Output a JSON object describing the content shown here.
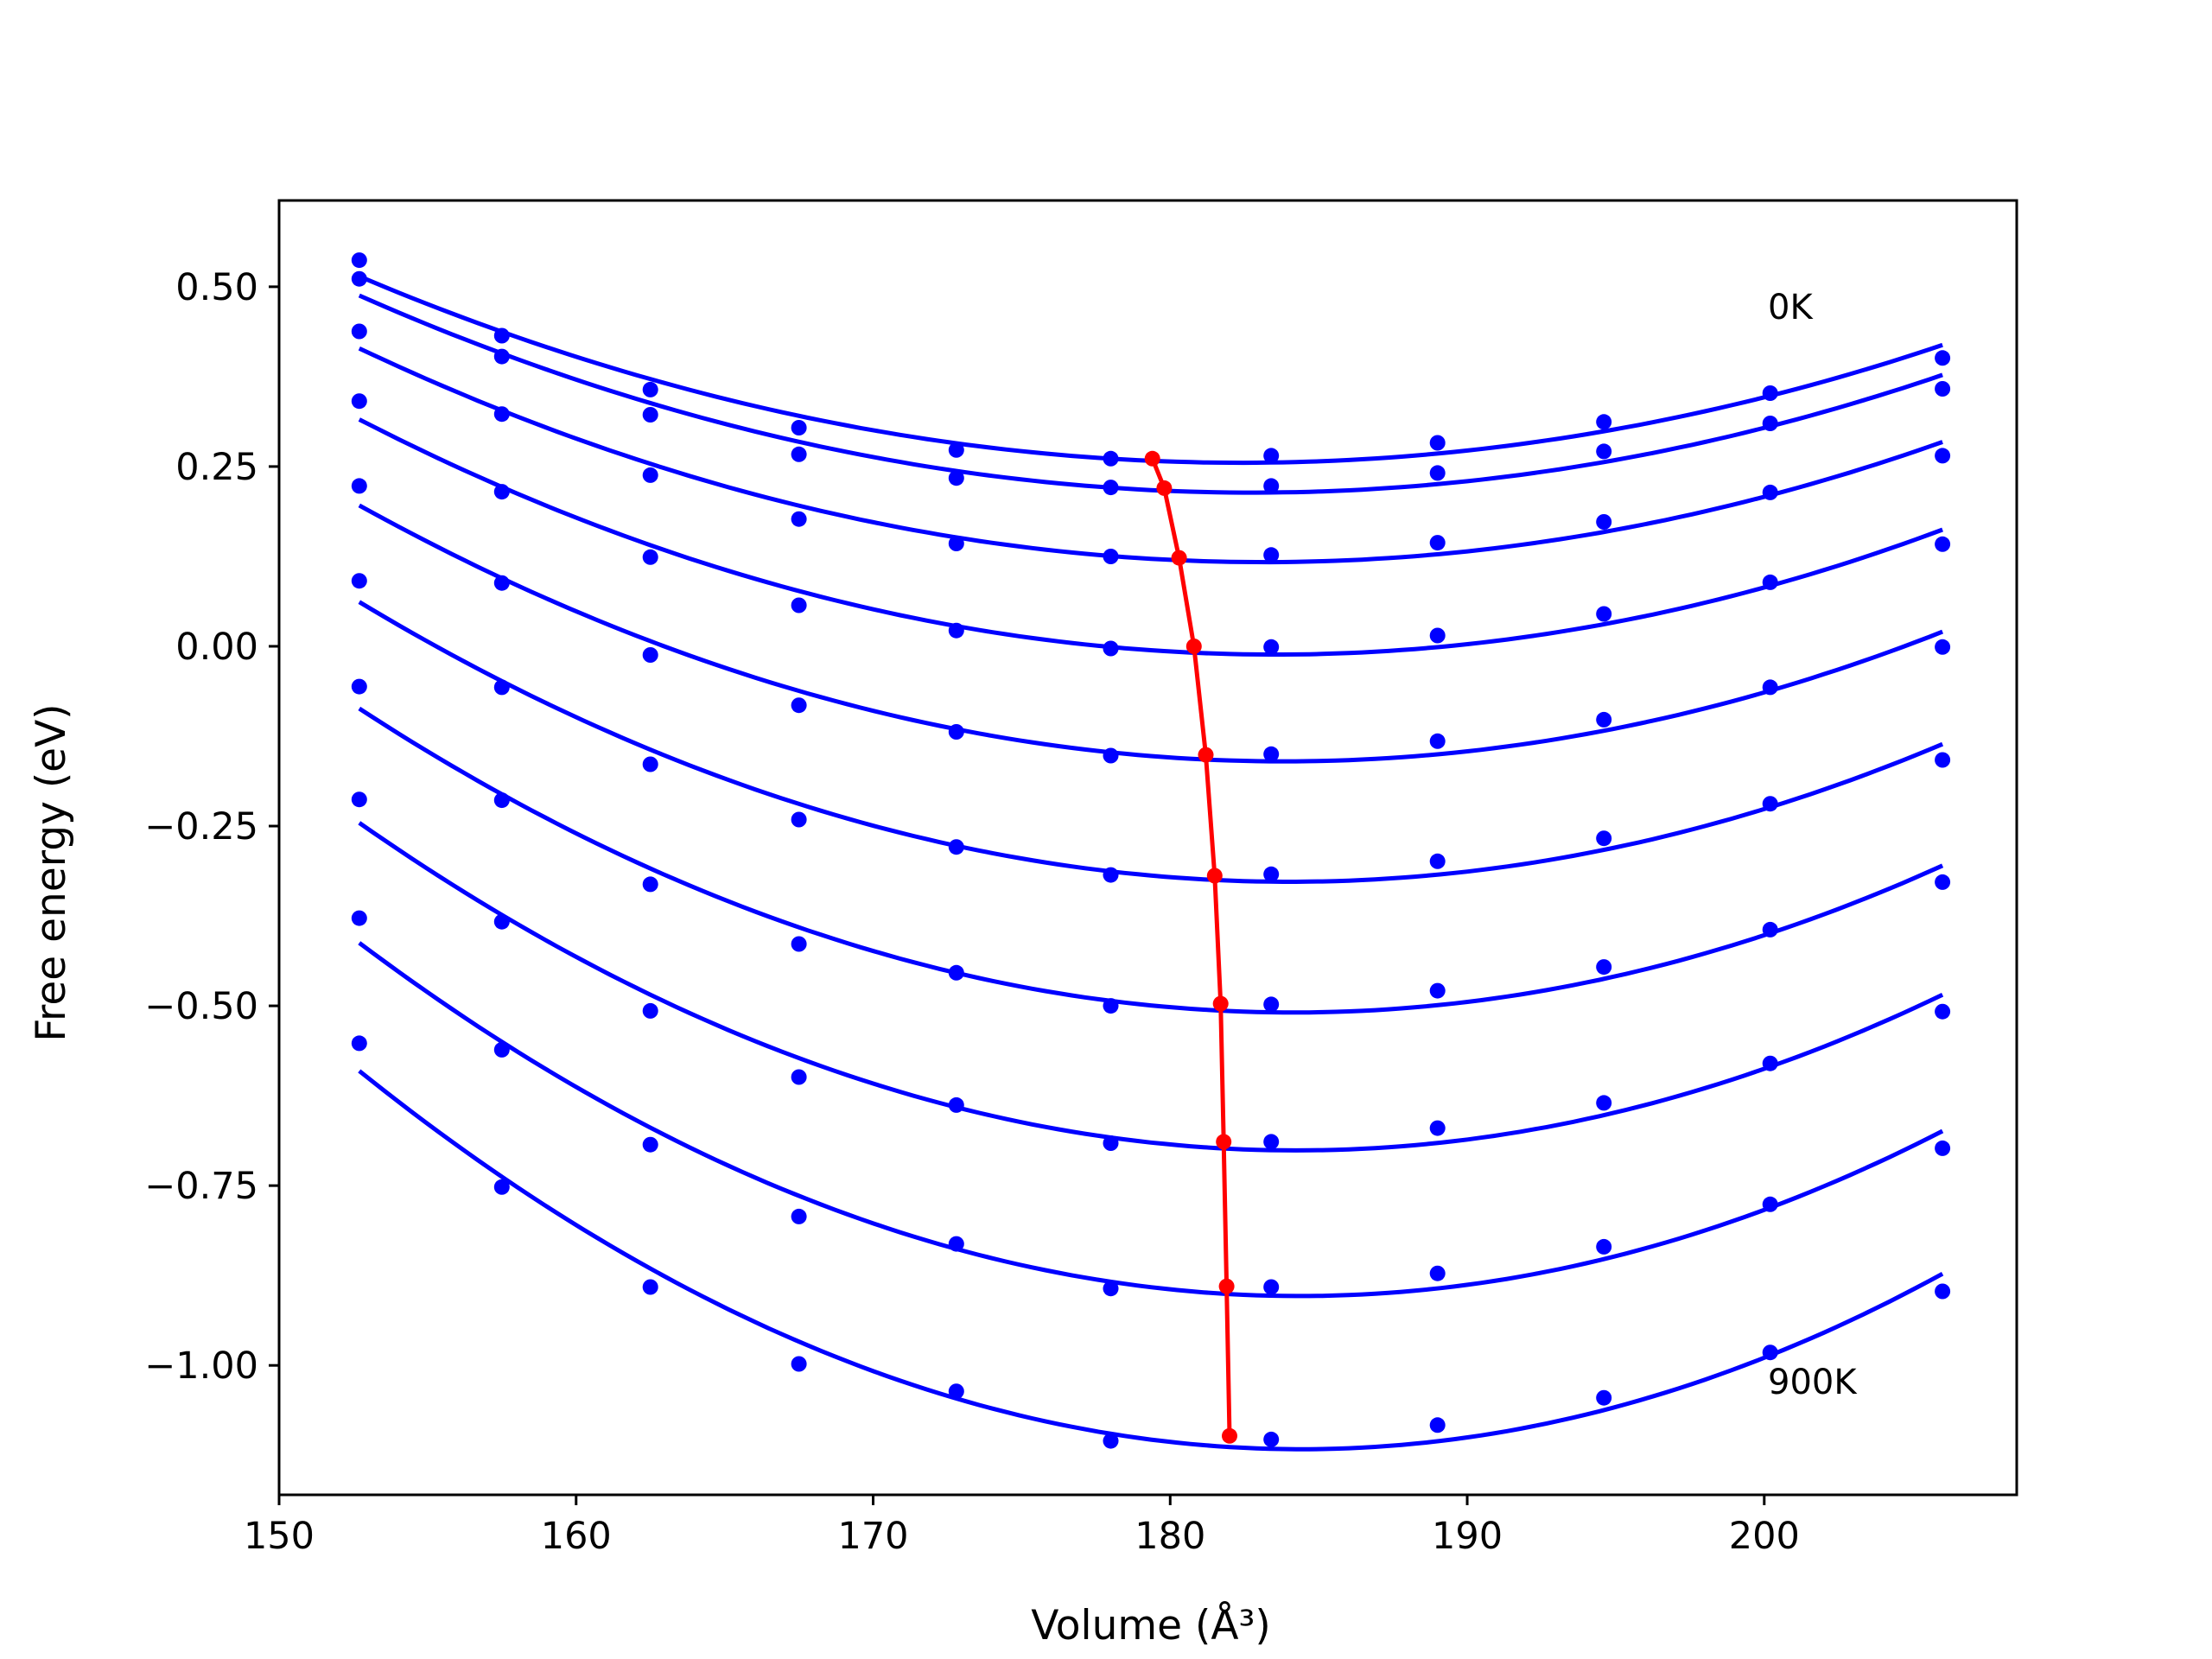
{
  "chart_data": {
    "type": "line",
    "xlabel": "Volume (Å³)",
    "ylabel": "Free energy (eV)",
    "xlim": [
      150,
      208.5
    ],
    "ylim": [
      -1.18,
      0.62
    ],
    "xticks": [
      150,
      160,
      170,
      180,
      190,
      200
    ],
    "xtick_labels": [
      "150",
      "160",
      "170",
      "180",
      "190",
      "200"
    ],
    "yticks": [
      0.5,
      0.25,
      0.0,
      -0.25,
      -0.5,
      -0.75,
      -1.0
    ],
    "ytick_labels": [
      "0.50",
      "0.25",
      "0.00",
      "−0.25",
      "−0.50",
      "−0.75",
      "−1.00"
    ],
    "grid": false,
    "colors": {
      "data": "#0000ff",
      "minima": "#ff0000"
    },
    "x": [
      152.7,
      157.5,
      162.5,
      167.5,
      172.8,
      178.0,
      183.4,
      189.0,
      194.6,
      200.2,
      206.0
    ],
    "series": [
      {
        "values": [
          0.537,
          0.432,
          0.357,
          0.304,
          0.273,
          0.261,
          0.265,
          0.283,
          0.312,
          0.352,
          0.401
        ]
      },
      {
        "values": [
          0.511,
          0.403,
          0.322,
          0.267,
          0.234,
          0.221,
          0.223,
          0.241,
          0.271,
          0.31,
          0.358
        ]
      },
      {
        "values": [
          0.438,
          0.323,
          0.238,
          0.177,
          0.143,
          0.125,
          0.127,
          0.144,
          0.173,
          0.214,
          0.265
        ]
      },
      {
        "values": [
          0.341,
          0.215,
          0.124,
          0.057,
          0.022,
          -0.003,
          -0.001,
          0.015,
          0.045,
          0.089,
          0.142
        ]
      },
      {
        "values": [
          0.223,
          0.088,
          -0.012,
          -0.082,
          -0.119,
          -0.152,
          -0.15,
          -0.132,
          -0.102,
          -0.057,
          -0.001
        ]
      },
      {
        "values": [
          0.091,
          -0.057,
          -0.164,
          -0.241,
          -0.279,
          -0.318,
          -0.317,
          -0.299,
          -0.267,
          -0.219,
          -0.158
        ]
      },
      {
        "values": [
          -0.056,
          -0.214,
          -0.331,
          -0.414,
          -0.454,
          -0.5,
          -0.498,
          -0.479,
          -0.446,
          -0.394,
          -0.328
        ]
      },
      {
        "values": [
          -0.213,
          -0.383,
          -0.507,
          -0.599,
          -0.638,
          -0.691,
          -0.689,
          -0.67,
          -0.635,
          -0.58,
          -0.508
        ]
      },
      {
        "values": [
          -0.378,
          -0.561,
          -0.693,
          -0.793,
          -0.831,
          -0.893,
          -0.891,
          -0.872,
          -0.835,
          -0.776,
          -0.698
        ]
      },
      {
        "values": [
          -0.552,
          -0.752,
          -0.891,
          -0.998,
          -1.036,
          -1.105,
          -1.103,
          -1.083,
          -1.045,
          -0.982,
          -0.897
        ]
      }
    ],
    "minima": {
      "x": [
        179.4,
        179.8,
        180.3,
        180.8,
        181.2,
        181.5,
        181.7,
        181.8,
        181.9,
        182.0
      ],
      "y": [
        0.261,
        0.22,
        0.123,
        0.0,
        -0.151,
        -0.319,
        -0.497,
        -0.689,
        -0.89,
        -1.098
      ]
    },
    "annotations": [
      "0K",
      "900K"
    ]
  }
}
